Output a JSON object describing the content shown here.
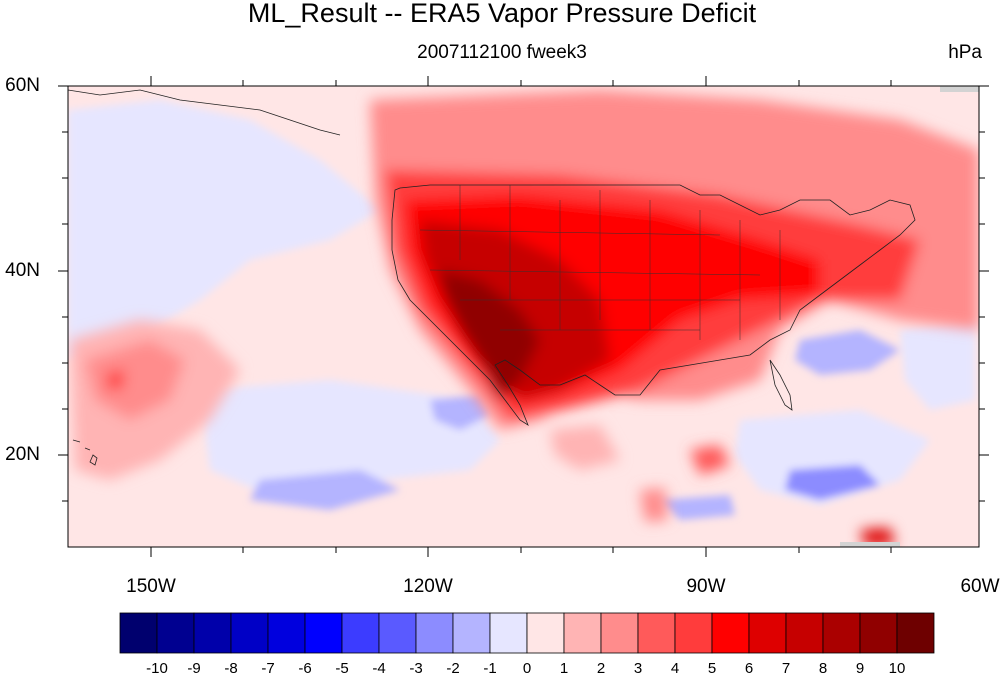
{
  "map": {
    "title": "ML_Result -- ERA5 Vapor Pressure Deficit",
    "subtitle": "2007112100 fweek3",
    "units": "hPa",
    "lat_labels": [
      "60N",
      "40N",
      "20N"
    ],
    "lon_labels": [
      "150W",
      "120W",
      "90W",
      "60W"
    ],
    "extent": {
      "lon_min": -159,
      "lon_max": -60,
      "lat_min": 10,
      "lat_max": 60
    }
  },
  "colorbar": {
    "labels": [
      "-10",
      "-9",
      "-8",
      "-7",
      "-6",
      "-5",
      "-4",
      "-3",
      "-2",
      "-1",
      "0",
      "1",
      "2",
      "3",
      "4",
      "5",
      "6",
      "7",
      "8",
      "9",
      "10"
    ],
    "colors": [
      "#00006e",
      "#000090",
      "#0000aa",
      "#0000c6",
      "#0000de",
      "#0000ff",
      "#3c3cff",
      "#5a5aff",
      "#8c8cff",
      "#b4b4ff",
      "#e6e6ff",
      "#ffe6e6",
      "#ffb4b4",
      "#ff8c8c",
      "#ff5a5a",
      "#ff3c3c",
      "#ff0000",
      "#de0000",
      "#c60000",
      "#aa0000",
      "#900000",
      "#6e0000"
    ]
  }
}
